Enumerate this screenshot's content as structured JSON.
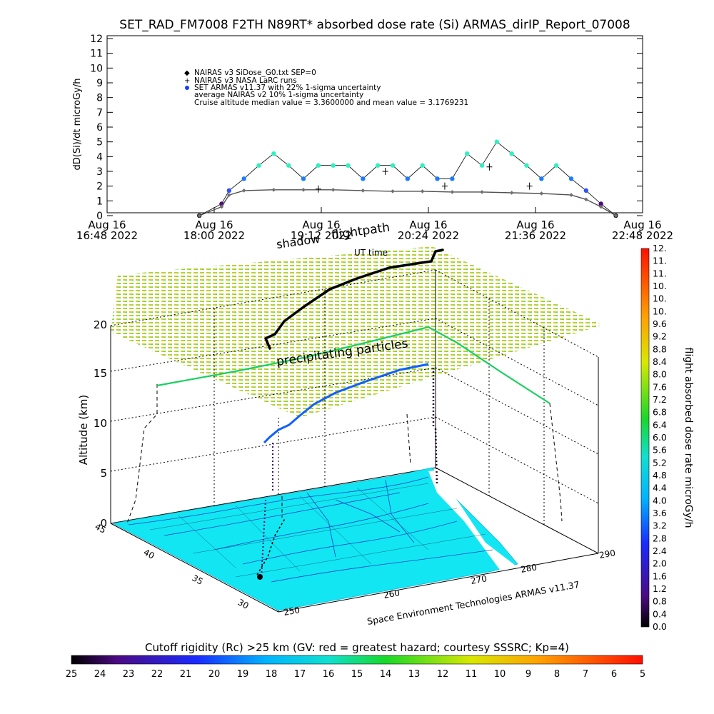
{
  "title": "SET_RAD_FM7008  F2TH N89RT* absorbed dose rate (Si) ARMAS_dirIP_Report_07008",
  "top_chart": {
    "ylabel": "dD(Si)/dt microGy/h",
    "y_ticks": [
      "0",
      "1",
      "2",
      "3",
      "4",
      "5",
      "6",
      "7",
      "8",
      "9",
      "10",
      "11",
      "12"
    ],
    "x_ticks": [
      {
        "date": "Aug 16",
        "time": "16:48 2022"
      },
      {
        "date": "Aug 16",
        "time": "18:00 2022"
      },
      {
        "date": "Aug 16",
        "time": "19:12 2022"
      },
      {
        "date": "Aug 16",
        "time": "20:24 2022"
      },
      {
        "date": "Aug 16",
        "time": "21:36 2022"
      },
      {
        "date": "Aug 16",
        "time": "22:48 2022"
      }
    ],
    "legend": [
      {
        "marker": "◆",
        "color": "#808080",
        "text": "NAIRAS v3 SiDose_G0.txt SEP=0"
      },
      {
        "marker": "+",
        "color": "#000000",
        "text": "NAIRAS v3 NASA LaRC runs"
      },
      {
        "marker": "●",
        "color": "#1040ff",
        "text": "SET ARMAS v11.37 with 22% 1-sigma uncertainty"
      },
      {
        "marker": "",
        "color": "#000000",
        "text": "average NAIRAS v2 10% 1-sigma uncertainty"
      },
      {
        "marker": "",
        "color": "#000000",
        "text": "Cruise altitude median value = 3.3600000 and mean value = 3.1769231"
      }
    ]
  },
  "chart_data": [
    {
      "type": "scatter",
      "title": "SET_RAD_FM7008  F2TH N89RT* absorbed dose rate (Si) ARMAS_dirIP_Report_07008",
      "xlabel": "",
      "ylabel": "dD(Si)/dt microGy/h",
      "xlim": [
        "2022-08-16 16:48",
        "2022-08-16 22:48"
      ],
      "ylim": [
        0,
        12
      ],
      "series": [
        {
          "name": "SET ARMAS v11.37 with 22% 1-sigma uncertainty",
          "x": [
            "2022-08-16 17:50",
            "2022-08-16 18:05",
            "2022-08-16 18:10",
            "2022-08-16 18:20",
            "2022-08-16 18:30",
            "2022-08-16 18:40",
            "2022-08-16 18:50",
            "2022-08-16 19:00",
            "2022-08-16 19:10",
            "2022-08-16 19:20",
            "2022-08-16 19:30",
            "2022-08-16 19:40",
            "2022-08-16 19:50",
            "2022-08-16 20:00",
            "2022-08-16 20:10",
            "2022-08-16 20:20",
            "2022-08-16 20:30",
            "2022-08-16 20:40",
            "2022-08-16 20:50",
            "2022-08-16 21:00",
            "2022-08-16 21:10",
            "2022-08-16 21:20",
            "2022-08-16 21:30",
            "2022-08-16 21:40",
            "2022-08-16 21:50",
            "2022-08-16 22:00",
            "2022-08-16 22:10",
            "2022-08-16 22:20",
            "2022-08-16 22:30"
          ],
          "y": [
            0.0,
            0.8,
            1.7,
            2.5,
            3.4,
            4.2,
            3.4,
            2.5,
            3.4,
            3.4,
            3.4,
            2.5,
            3.4,
            3.4,
            2.5,
            3.4,
            2.5,
            2.5,
            4.2,
            3.4,
            5.0,
            4.2,
            3.4,
            2.5,
            3.4,
            2.5,
            1.7,
            0.8,
            0.0
          ]
        },
        {
          "name": "NAIRAS v3 SiDose_G0.txt SEP=0",
          "x": [
            "2022-08-16 17:50",
            "2022-08-16 18:05",
            "2022-08-16 18:10",
            "2022-08-16 18:20",
            "2022-08-16 18:40",
            "2022-08-16 19:00",
            "2022-08-16 19:20",
            "2022-08-16 19:40",
            "2022-08-16 20:00",
            "2022-08-16 20:20",
            "2022-08-16 20:40",
            "2022-08-16 21:00",
            "2022-08-16 21:20",
            "2022-08-16 21:40",
            "2022-08-16 22:00",
            "2022-08-16 22:10",
            "2022-08-16 22:20",
            "2022-08-16 22:30"
          ],
          "y": [
            0.0,
            0.6,
            1.4,
            1.7,
            1.75,
            1.75,
            1.75,
            1.7,
            1.65,
            1.65,
            1.6,
            1.6,
            1.55,
            1.5,
            1.4,
            1.1,
            0.6,
            0.0
          ]
        },
        {
          "name": "NAIRAS v3 NASA LaRC runs",
          "x": [
            "2022-08-16 19:10",
            "2022-08-16 19:55",
            "2022-08-16 20:35",
            "2022-08-16 21:05",
            "2022-08-16 21:32"
          ],
          "y": [
            1.8,
            3.0,
            2.0,
            3.3,
            2.0
          ]
        }
      ]
    },
    {
      "type": "heatmap",
      "title": "precipitating particles",
      "xlabel": "",
      "ylabel": "Altitude (km)",
      "z_ticks": [
        "0",
        "5",
        "10",
        "15",
        "20"
      ],
      "lon_ticks": [
        "250",
        "260",
        "270",
        "280",
        "290"
      ],
      "lat_ticks": [
        "30",
        "35",
        "40",
        "45"
      ],
      "colorbar_label": "flight absorbed dose rate microGy/h",
      "colorbar_ticks": [
        "0.0",
        "0.4",
        "0.8",
        "1.2",
        "1.6",
        "2.0",
        "2.4",
        "2.8",
        "3.2",
        "3.6",
        "4.0",
        "4.4",
        "4.8",
        "5.2",
        "5.6",
        "6.0",
        "6.4",
        "6.8",
        "7.2",
        "7.6",
        "8.0",
        "8.4",
        "8.8",
        "9.2",
        "9.6",
        "10.",
        "10.",
        "10.",
        "11.",
        "11.",
        "12."
      ]
    }
  ],
  "scene": {
    "shadow_label": "shadow",
    "flightpath_label": "flightpath",
    "precip_label": "precipitating particles",
    "ut_label": "UT time",
    "altitude_label": "Altitude (km)",
    "alt_ticks": [
      "0",
      "5",
      "10",
      "15",
      "20"
    ],
    "lat_ticks": [
      "45",
      "40",
      "35",
      "30"
    ],
    "lon_ticks": [
      "250",
      "260",
      "270",
      "280",
      "290"
    ],
    "credit": "Space Environment Technologies ARMAS v11.37",
    "dose_label": "flight absorbed dose rate microGy/h",
    "dose_ticks": [
      "0.0",
      "0.4",
      "0.8",
      "1.2",
      "1.6",
      "2.0",
      "2.4",
      "2.8",
      "3.2",
      "3.6",
      "4.0",
      "4.4",
      "4.8",
      "5.2",
      "5.6",
      "6.0",
      "6.4",
      "6.8",
      "7.2",
      "7.6",
      "8.0",
      "8.4",
      "8.8",
      "9.2",
      "9.6",
      "10.",
      "10.",
      "10.",
      "11.",
      "11.",
      "12."
    ]
  },
  "cutoff_bar": {
    "label": "Cutoff rigidity (Rc) >25 km (GV: red = greatest hazard; courtesy SSSRC; Kp=4)",
    "ticks": [
      "25",
      "24",
      "23",
      "22",
      "21",
      "20",
      "19",
      "18",
      "17",
      "16",
      "15",
      "14",
      "13",
      "12",
      "11",
      "10",
      "9",
      "8",
      "7",
      "6",
      "5"
    ]
  },
  "colors": {
    "armas": "#1a7cff",
    "armas_high": "#30f0c0",
    "nairas": "#707070",
    "flight": "#000000",
    "map_fill": "#12e6f2",
    "land_lines": "#1030c0"
  }
}
